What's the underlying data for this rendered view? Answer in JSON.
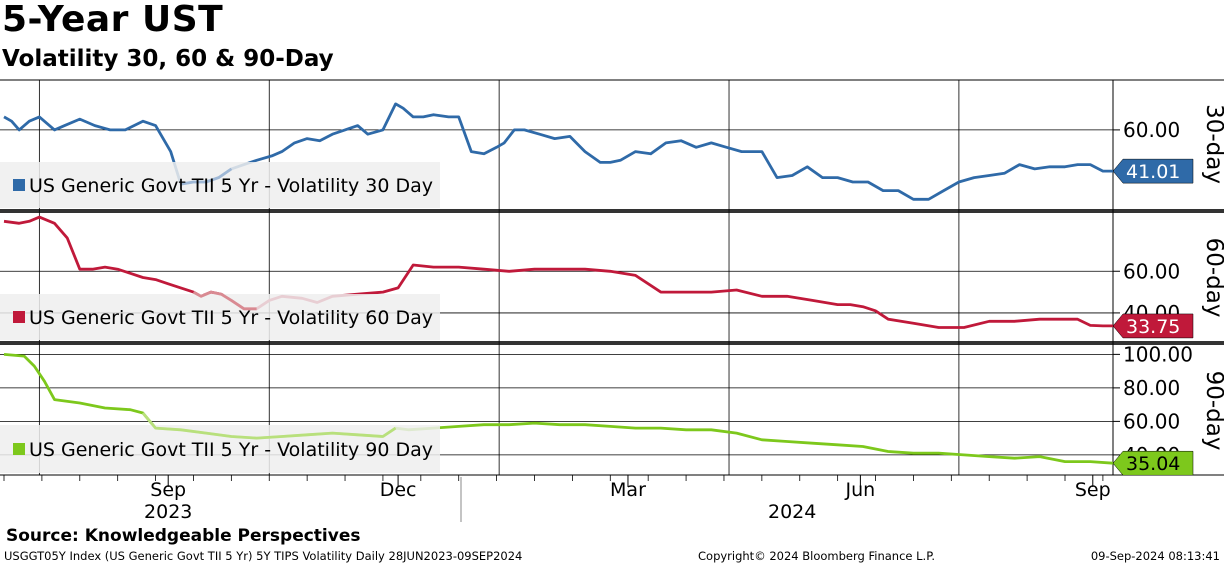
{
  "header": {
    "title": "5-Year UST",
    "subtitle": "Volatility 30, 60 & 90-Day"
  },
  "footer": {
    "source": "Source: Knowledgeable Perspectives",
    "ticker": "USGGT05Y Index (US Generic Govt TII 5 Yr) 5Y TIPS Volatility  Daily 28JUN2023-09SEP2024",
    "copyright": "Copyright© 2024 Bloomberg Finance L.P.",
    "timestamp": "09-Sep-2024 08:13:41"
  },
  "colors": {
    "s30": "#2f6aa8",
    "s60": "#c0193a",
    "s90": "#7dc81c",
    "s30_light": "#9fb8d6",
    "s60_light": "#d98a92",
    "s90_light": "#b8e07c",
    "legend_bg": "#eeeeee",
    "grid": "#000000"
  },
  "chart_data": {
    "type": "line",
    "x_start": "28JUN2023",
    "x_end": "09SEP2024",
    "x_tick_labels": [
      "Sep",
      "Dec",
      "Mar",
      "Jun",
      "Sep"
    ],
    "x_tick_days": [
      65,
      156,
      247,
      339,
      431
    ],
    "year_labels": [
      "2023",
      "2024"
    ],
    "year_label_days": [
      65,
      312
    ],
    "total_days": 439,
    "panels": [
      {
        "name": "30-day",
        "axis_title": "30-day",
        "legend": "US Generic Govt TII 5 Yr - Volatility 30 Day",
        "ylim": [
          24,
          83
        ],
        "y_ticks": [
          60
        ],
        "y_tick_labels": [
          "60.00"
        ],
        "last_value_label": "41.01",
        "color_key": "s30",
        "x": [
          0,
          3,
          6,
          10,
          14,
          20,
          24,
          30,
          36,
          42,
          48,
          55,
          60,
          66,
          70,
          75,
          80,
          85,
          90,
          95,
          100,
          106,
          110,
          115,
          120,
          125,
          130,
          135,
          140,
          144,
          150,
          155,
          158,
          162,
          166,
          170,
          176,
          180,
          185,
          190,
          195,
          198,
          202,
          206,
          212,
          218,
          224,
          230,
          236,
          240,
          244,
          250,
          256,
          262,
          268,
          274,
          280,
          286,
          292,
          300,
          306,
          312,
          318,
          324,
          330,
          336,
          342,
          348,
          354,
          360,
          366,
          372,
          378,
          384,
          390,
          396,
          402,
          408,
          414,
          420,
          425,
          430,
          435,
          439
        ],
        "values": [
          66,
          64,
          60,
          64,
          66,
          60,
          62,
          65,
          62,
          60,
          60,
          64,
          62,
          50,
          35,
          36,
          36,
          38,
          42,
          44,
          46,
          48,
          50,
          54,
          56,
          55,
          58,
          60,
          62,
          58,
          60,
          72,
          70,
          66,
          66,
          67,
          66,
          66,
          50,
          49,
          52,
          54,
          60,
          60,
          58,
          56,
          57,
          50,
          45,
          45,
          46,
          50,
          49,
          54,
          55,
          52,
          54,
          52,
          50,
          50,
          38,
          39,
          43,
          38,
          38,
          36,
          36,
          32,
          32,
          28,
          28,
          32,
          36,
          38,
          39,
          40,
          44,
          42,
          43,
          43,
          44,
          44,
          41,
          41
        ],
        "light_range": [
          68,
          90
        ]
      },
      {
        "name": "60-day",
        "axis_title": "60-day",
        "legend": "US Generic Govt TII 5 Yr - Volatility 60 Day",
        "ylim": [
          27,
          87
        ],
        "y_ticks": [
          40,
          60
        ],
        "y_tick_labels": [
          "40.00",
          "60.00"
        ],
        "last_value_label": "33.75",
        "color_key": "s60",
        "x": [
          0,
          6,
          10,
          14,
          20,
          25,
          30,
          35,
          40,
          45,
          50,
          55,
          60,
          65,
          70,
          75,
          78,
          82,
          86,
          90,
          95,
          100,
          105,
          110,
          118,
          124,
          130,
          140,
          150,
          156,
          162,
          170,
          180,
          190,
          200,
          210,
          220,
          230,
          240,
          250,
          260,
          270,
          280,
          290,
          300,
          310,
          320,
          330,
          335,
          340,
          345,
          350,
          360,
          370,
          380,
          390,
          400,
          410,
          420,
          425,
          430,
          435,
          439
        ],
        "values": [
          84,
          83,
          84,
          86,
          83,
          76,
          61,
          61,
          62,
          61,
          59,
          57,
          56,
          54,
          52,
          50,
          48,
          50,
          49,
          46,
          42,
          42,
          46,
          48,
          47,
          45,
          48,
          49,
          50,
          52,
          63,
          62,
          62,
          61,
          60,
          61,
          61,
          61,
          60,
          58,
          50,
          50,
          50,
          51,
          48,
          48,
          46,
          44,
          44,
          43,
          41,
          37,
          35,
          33,
          33,
          36,
          36,
          37,
          37,
          37,
          34,
          33.75,
          33.75
        ],
        "light_range": [
          72,
          102
        ]
      },
      {
        "name": "90-day",
        "axis_title": "90-day",
        "legend": "US Generic Govt TII 5 Yr - Volatility 90 Day",
        "ylim": [
          28,
          105
        ],
        "y_ticks": [
          40,
          60,
          80,
          100
        ],
        "y_tick_labels": [
          "40.00",
          "60.00",
          "80.00",
          "100.00"
        ],
        "last_value_label": "35.04",
        "color_key": "s90",
        "x": [
          0,
          8,
          12,
          16,
          20,
          30,
          40,
          50,
          55,
          60,
          70,
          80,
          90,
          100,
          110,
          120,
          130,
          140,
          150,
          155,
          160,
          170,
          180,
          190,
          200,
          210,
          220,
          230,
          240,
          250,
          260,
          270,
          280,
          290,
          300,
          310,
          320,
          330,
          340,
          350,
          360,
          370,
          380,
          390,
          400,
          410,
          420,
          430,
          439
        ],
        "values": [
          100,
          99,
          93,
          84,
          73,
          71,
          68,
          67,
          65,
          56,
          55,
          53,
          51,
          50,
          51,
          52,
          53,
          52,
          51,
          56,
          55,
          56,
          57,
          58,
          58,
          59,
          58,
          58,
          57,
          56,
          56,
          55,
          55,
          53,
          49,
          48,
          47,
          46,
          45,
          42,
          41,
          41,
          40,
          39,
          38,
          39,
          36,
          36,
          35.04
        ],
        "light_range": [
          55,
          155
        ]
      }
    ]
  }
}
